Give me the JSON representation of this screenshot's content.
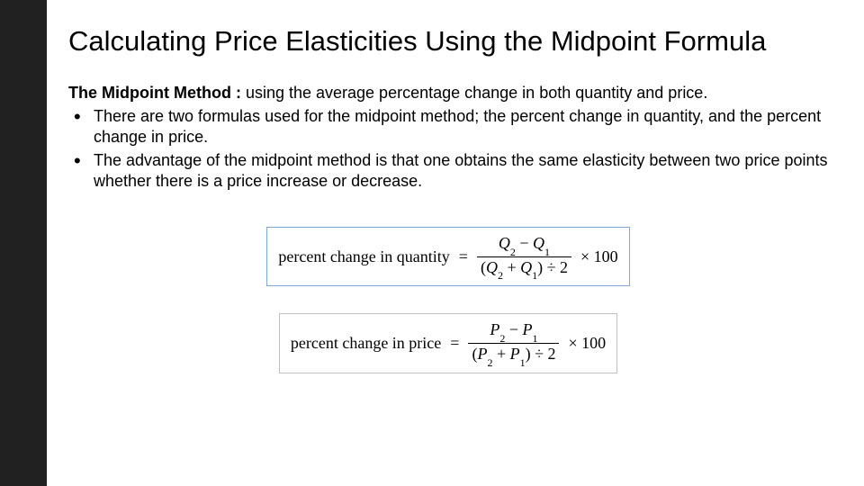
{
  "colors": {
    "sidebar": "#212121",
    "background": "#ffffff",
    "text": "#000000",
    "formula_border_1": "#7fa8d9",
    "formula_border_2": "#c0c0c0"
  },
  "title": "Calculating Price Elasticities Using the Midpoint Formula",
  "lead_bold": "The Midpoint Method :",
  "lead_rest": " using the average percentage change in both quantity and price.",
  "bullets": [
    "There are two formulas used for the midpoint method; the percent change in quantity, and the percent change in price.",
    "The advantage of the midpoint method is that one obtains the same elasticity between two price points whether there is a price increase or decrease."
  ],
  "formula1": {
    "label": "percent change in quantity",
    "eq": "=",
    "num_a": "Q",
    "num_a_sub": "2",
    "num_op": " − ",
    "num_b": "Q",
    "num_b_sub": "1",
    "den_open": "(",
    "den_a": "Q",
    "den_a_sub": "2",
    "den_op": " + ",
    "den_b": "Q",
    "den_b_sub": "1",
    "den_close": ") ÷ 2",
    "tail": "× 100"
  },
  "formula2": {
    "label": "percent change in price",
    "eq": "=",
    "num_a": "P",
    "num_a_sub": "2",
    "num_op": " − ",
    "num_b": "P",
    "num_b_sub": "1",
    "den_open": "(",
    "den_a": "P",
    "den_a_sub": "2",
    "den_op": " + ",
    "den_b": "P",
    "den_b_sub": "1",
    "den_close": ") ÷ 2",
    "tail": "× 100"
  }
}
